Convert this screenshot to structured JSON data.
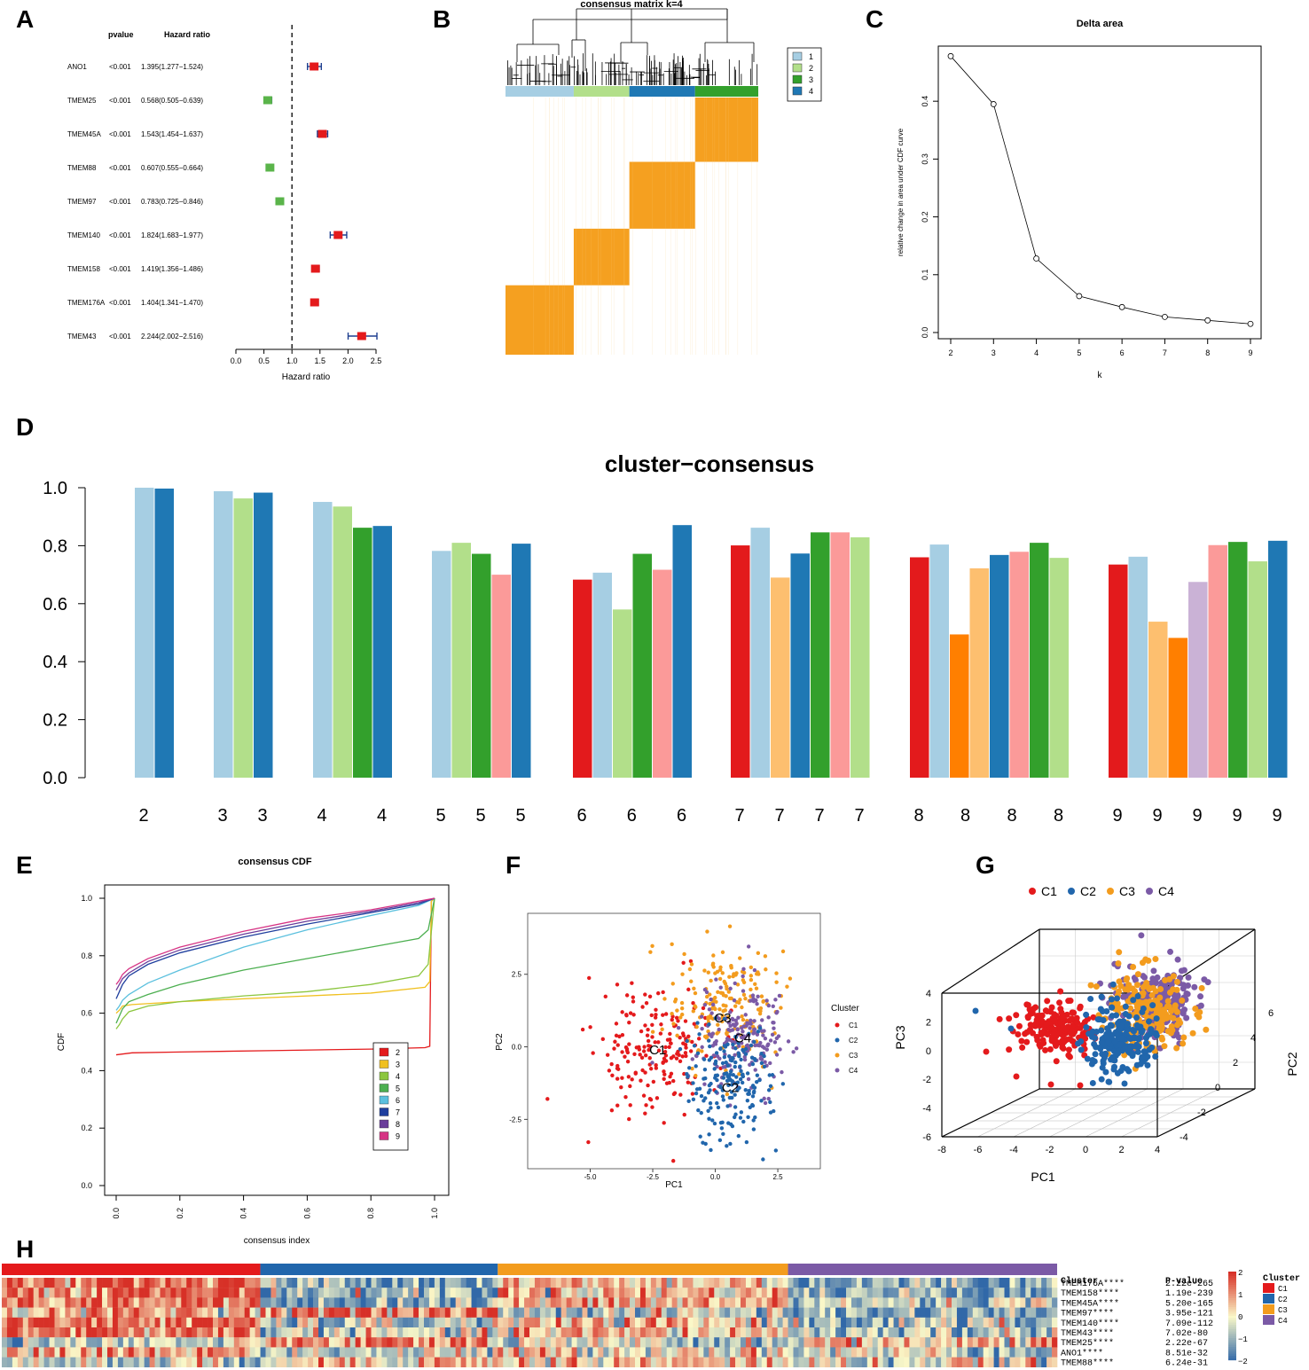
{
  "panel_labels": [
    "A",
    "B",
    "C",
    "D",
    "E",
    "F",
    "G",
    "H"
  ],
  "colors": {
    "red": "#e31a1c",
    "light_blue": "#a6cee3",
    "light_green": "#b2df8a",
    "dark_blue": "#1f78b4",
    "dark_green": "#33a02c",
    "pink": "#fb9a99",
    "light_orange": "#fdbf6f",
    "orange": "#ff7f00",
    "lavender": "#cab2d6",
    "forest_red": "#e41a1c",
    "forest_green": "#5ab44a",
    "consensus_orange": "#f5a020",
    "pca_red": "#e41a1c",
    "pca_blue": "#2166ac",
    "pca_orange": "#f39c1e",
    "pca_purple": "#7b5aa6"
  },
  "chart_data": [
    {
      "id": "forest",
      "type": "forest",
      "headers": {
        "pvalue": "pvalue",
        "hr": "Hazard ratio"
      },
      "xlabel": "Hazard ratio",
      "xlim": [
        0,
        2.5
      ],
      "xticks": [
        "0.0",
        "0.5",
        "1.0",
        "1.5",
        "2.0",
        "2.5"
      ],
      "ref_line": 1.0,
      "rows": [
        {
          "gene": "ANO1",
          "pvalue": "<0.001",
          "hr_text": "1.395(1.277−1.524)",
          "hr": 1.395,
          "lo": 1.277,
          "hi": 1.524
        },
        {
          "gene": "TMEM25",
          "pvalue": "<0.001",
          "hr_text": "0.568(0.505−0.639)",
          "hr": 0.568,
          "lo": 0.505,
          "hi": 0.639
        },
        {
          "gene": "TMEM45A",
          "pvalue": "<0.001",
          "hr_text": "1.543(1.454−1.637)",
          "hr": 1.543,
          "lo": 1.454,
          "hi": 1.637
        },
        {
          "gene": "TMEM88",
          "pvalue": "<0.001",
          "hr_text": "0.607(0.555−0.664)",
          "hr": 0.607,
          "lo": 0.555,
          "hi": 0.664
        },
        {
          "gene": "TMEM97",
          "pvalue": "<0.001",
          "hr_text": "0.783(0.725−0.846)",
          "hr": 0.783,
          "lo": 0.725,
          "hi": 0.846
        },
        {
          "gene": "TMEM140",
          "pvalue": "<0.001",
          "hr_text": "1.824(1.683−1.977)",
          "hr": 1.824,
          "lo": 1.683,
          "hi": 1.977
        },
        {
          "gene": "TMEM158",
          "pvalue": "<0.001",
          "hr_text": "1.419(1.356−1.486)",
          "hr": 1.419,
          "lo": 1.356,
          "hi": 1.486
        },
        {
          "gene": "TMEM176A",
          "pvalue": "<0.001",
          "hr_text": "1.404(1.341−1.470)",
          "hr": 1.404,
          "lo": 1.341,
          "hi": 1.47
        },
        {
          "gene": "TMEM43",
          "pvalue": "<0.001",
          "hr_text": "2.244(2.002−2.516)",
          "hr": 2.244,
          "lo": 2.002,
          "hi": 2.516
        }
      ]
    },
    {
      "id": "consensus-matrix",
      "type": "heatmap",
      "title": "consensus matrix k=4",
      "legend": [
        "1",
        "2",
        "3",
        "4"
      ],
      "legend_colors": [
        "#a6cee3",
        "#b2df8a",
        "#33a02c",
        "#1f78b4"
      ],
      "cluster_fractions": [
        0.27,
        0.22,
        0.25,
        0.26
      ]
    },
    {
      "id": "delta-area",
      "type": "line",
      "title": "Delta area",
      "xlabel": "k",
      "ylabel": "relative change in area under CDF curve",
      "x": [
        2,
        3,
        4,
        5,
        6,
        7,
        8,
        9
      ],
      "y": [
        0.478,
        0.395,
        0.128,
        0.063,
        0.044,
        0.027,
        0.021,
        0.015
      ],
      "xticks": [
        "2",
        "3",
        "4",
        "5",
        "6",
        "7",
        "8",
        "9"
      ],
      "yticks": [
        "0.0",
        "0.1",
        "0.2",
        "0.3",
        "0.4"
      ],
      "ylim": [
        0,
        0.48
      ]
    },
    {
      "id": "cluster-consensus",
      "type": "bar",
      "title": "cluster−consensus",
      "ylim": [
        0,
        1.0
      ],
      "yticks": [
        "0.0",
        "0.2",
        "0.4",
        "0.6",
        "0.8",
        "1.0"
      ],
      "groups": [
        {
          "k": "2",
          "bars": [
            {
              "v": 1.0,
              "c": "#a6cee3"
            },
            {
              "v": 0.997,
              "c": "#1f78b4"
            }
          ],
          "labels": [
            "2"
          ]
        },
        {
          "k": "3",
          "bars": [
            {
              "v": 0.988,
              "c": "#a6cee3"
            },
            {
              "v": 0.963,
              "c": "#b2df8a"
            },
            {
              "v": 0.983,
              "c": "#1f78b4"
            }
          ],
          "labels": [
            "3",
            "3"
          ]
        },
        {
          "k": "4",
          "bars": [
            {
              "v": 0.951,
              "c": "#a6cee3"
            },
            {
              "v": 0.935,
              "c": "#b2df8a"
            },
            {
              "v": 0.862,
              "c": "#33a02c"
            },
            {
              "v": 0.868,
              "c": "#1f78b4"
            }
          ],
          "labels": [
            "4",
            "4"
          ]
        },
        {
          "k": "5",
          "bars": [
            {
              "v": 0.782,
              "c": "#a6cee3"
            },
            {
              "v": 0.81,
              "c": "#b2df8a"
            },
            {
              "v": 0.772,
              "c": "#33a02c"
            },
            {
              "v": 0.7,
              "c": "#fb9a99"
            },
            {
              "v": 0.807,
              "c": "#1f78b4"
            }
          ],
          "labels": [
            "5",
            "5",
            "5"
          ]
        },
        {
          "k": "6",
          "bars": [
            {
              "v": 0.683,
              "c": "#e31a1c"
            },
            {
              "v": 0.707,
              "c": "#a6cee3"
            },
            {
              "v": 0.58,
              "c": "#b2df8a"
            },
            {
              "v": 0.772,
              "c": "#33a02c"
            },
            {
              "v": 0.717,
              "c": "#fb9a99"
            },
            {
              "v": 0.871,
              "c": "#1f78b4"
            }
          ],
          "labels": [
            "6",
            "6",
            "6"
          ]
        },
        {
          "k": "7",
          "bars": [
            {
              "v": 0.801,
              "c": "#e31a1c"
            },
            {
              "v": 0.862,
              "c": "#a6cee3"
            },
            {
              "v": 0.69,
              "c": "#fdbf6f"
            },
            {
              "v": 0.773,
              "c": "#1f78b4"
            },
            {
              "v": 0.846,
              "c": "#33a02c"
            },
            {
              "v": 0.846,
              "c": "#fb9a99"
            },
            {
              "v": 0.829,
              "c": "#b2df8a"
            }
          ],
          "labels": [
            "7",
            "7",
            "7",
            "7"
          ]
        },
        {
          "k": "8",
          "bars": [
            {
              "v": 0.76,
              "c": "#e31a1c"
            },
            {
              "v": 0.804,
              "c": "#a6cee3"
            },
            {
              "v": 0.494,
              "c": "#ff7f00"
            },
            {
              "v": 0.722,
              "c": "#fdbf6f"
            },
            {
              "v": 0.768,
              "c": "#1f78b4"
            },
            {
              "v": 0.779,
              "c": "#fb9a99"
            },
            {
              "v": 0.81,
              "c": "#33a02c"
            },
            {
              "v": 0.758,
              "c": "#b2df8a"
            }
          ],
          "labels": [
            "8",
            "8",
            "8",
            "8"
          ]
        },
        {
          "k": "9",
          "bars": [
            {
              "v": 0.735,
              "c": "#e31a1c"
            },
            {
              "v": 0.762,
              "c": "#a6cee3"
            },
            {
              "v": 0.538,
              "c": "#fdbf6f"
            },
            {
              "v": 0.482,
              "c": "#ff7f00"
            },
            {
              "v": 0.675,
              "c": "#cab2d6"
            },
            {
              "v": 0.802,
              "c": "#fb9a99"
            },
            {
              "v": 0.813,
              "c": "#33a02c"
            },
            {
              "v": 0.746,
              "c": "#b2df8a"
            },
            {
              "v": 0.817,
              "c": "#1f78b4"
            }
          ],
          "labels": [
            "9",
            "9",
            "9",
            "9",
            "9"
          ]
        }
      ]
    },
    {
      "id": "consensus-cdf",
      "type": "line",
      "title": "consensus CDF",
      "xlabel": "consensus index",
      "ylabel": "CDF",
      "xticks": [
        "0.0",
        "0.2",
        "0.4",
        "0.6",
        "0.8",
        "1.0"
      ],
      "yticks": [
        "0.0",
        "0.2",
        "0.4",
        "0.6",
        "0.8",
        "1.0"
      ],
      "xlim": [
        0,
        1
      ],
      "ylim": [
        0,
        1
      ],
      "legend": [
        "2",
        "3",
        "4",
        "5",
        "6",
        "7",
        "8",
        "9"
      ],
      "series": [
        {
          "name": "2",
          "color": "#e41a1c",
          "x": [
            0,
            0.05,
            0.2,
            0.5,
            0.8,
            0.97,
            0.985,
            0.99,
            1.0
          ],
          "y": [
            0.455,
            0.462,
            0.465,
            0.47,
            0.475,
            0.48,
            0.485,
            0.99,
            1.0
          ]
        },
        {
          "name": "3",
          "color": "#f0c020",
          "x": [
            0,
            0.01,
            0.02,
            0.05,
            0.2,
            0.5,
            0.8,
            0.97,
            0.985,
            0.99,
            1.0
          ],
          "y": [
            0.6,
            0.61,
            0.625,
            0.63,
            0.64,
            0.655,
            0.67,
            0.69,
            0.71,
            0.99,
            1.0
          ]
        },
        {
          "name": "4",
          "color": "#8cc63f",
          "x": [
            0,
            0.01,
            0.02,
            0.04,
            0.1,
            0.2,
            0.4,
            0.6,
            0.8,
            0.95,
            0.98,
            1.0
          ],
          "y": [
            0.545,
            0.56,
            0.58,
            0.605,
            0.625,
            0.64,
            0.66,
            0.675,
            0.7,
            0.73,
            0.77,
            1.0
          ]
        },
        {
          "name": "5",
          "color": "#4caf50",
          "x": [
            0,
            0.01,
            0.02,
            0.04,
            0.1,
            0.2,
            0.4,
            0.6,
            0.8,
            0.95,
            0.98,
            1.0
          ],
          "y": [
            0.565,
            0.59,
            0.615,
            0.64,
            0.665,
            0.7,
            0.75,
            0.79,
            0.83,
            0.86,
            0.89,
            1.0
          ]
        },
        {
          "name": "6",
          "color": "#5bc0de",
          "x": [
            0,
            0.01,
            0.02,
            0.04,
            0.1,
            0.2,
            0.4,
            0.6,
            0.8,
            0.95,
            1.0
          ],
          "y": [
            0.61,
            0.625,
            0.645,
            0.665,
            0.705,
            0.75,
            0.83,
            0.89,
            0.94,
            0.975,
            1.0
          ]
        },
        {
          "name": "7",
          "color": "#1f3f9e",
          "x": [
            0,
            0.01,
            0.02,
            0.04,
            0.1,
            0.2,
            0.4,
            0.6,
            0.8,
            0.95,
            1.0
          ],
          "y": [
            0.65,
            0.675,
            0.7,
            0.73,
            0.77,
            0.81,
            0.865,
            0.91,
            0.95,
            0.98,
            1.0
          ]
        },
        {
          "name": "8",
          "color": "#6a3d9a",
          "x": [
            0,
            0.01,
            0.02,
            0.04,
            0.1,
            0.2,
            0.4,
            0.6,
            0.8,
            0.95,
            1.0
          ],
          "y": [
            0.68,
            0.7,
            0.72,
            0.74,
            0.78,
            0.82,
            0.875,
            0.92,
            0.955,
            0.985,
            1.0
          ]
        },
        {
          "name": "9",
          "color": "#d63384",
          "x": [
            0,
            0.01,
            0.02,
            0.04,
            0.1,
            0.2,
            0.4,
            0.6,
            0.8,
            0.95,
            1.0
          ],
          "y": [
            0.7,
            0.715,
            0.735,
            0.755,
            0.79,
            0.83,
            0.885,
            0.93,
            0.96,
            0.99,
            1.0
          ]
        }
      ]
    },
    {
      "id": "pca-2d",
      "type": "scatter",
      "xlabel": "PC1",
      "ylabel": "PC2",
      "xticks": [
        "-5.0",
        "-2.5",
        "0.0",
        "2.5"
      ],
      "yticks": [
        "-2.5",
        "0.0",
        "2.5"
      ],
      "xlim": [
        -7.5,
        4.2
      ],
      "ylim": [
        -4.2,
        4.6
      ],
      "legend_title": "Cluster",
      "legend": [
        "C1",
        "C2",
        "C3",
        "C4"
      ],
      "cluster_labels": [
        "C1",
        "C2",
        "C3",
        "C4"
      ],
      "centers": [
        {
          "name": "C1",
          "x": -2.3,
          "y": -0.1
        },
        {
          "name": "C2",
          "x": 0.6,
          "y": -1.4
        },
        {
          "name": "C3",
          "x": 0.3,
          "y": 1.0
        },
        {
          "name": "C4",
          "x": 1.1,
          "y": 0.3
        }
      ]
    },
    {
      "id": "pca-3d",
      "type": "scatter",
      "legend": [
        "C1",
        "C2",
        "C3",
        "C4"
      ],
      "xlabel": "PC1",
      "ylabel": "PC2",
      "zlabel": "PC3",
      "xticks": [
        "-8",
        "-6",
        "-4",
        "-2",
        "0",
        "2",
        "4"
      ],
      "yticks": [
        "-4",
        "-2",
        "0",
        "2",
        "4",
        "6"
      ],
      "zticks": [
        "-6",
        "-4",
        "-2",
        "0",
        "2",
        "4"
      ]
    },
    {
      "id": "expression-heatmap",
      "type": "heatmap",
      "annotation_label": "Cluster",
      "pvalue_header": "P-value",
      "cluster_legend_title": "Cluster",
      "cluster_legend": [
        "C1",
        "C2",
        "C3",
        "C4"
      ],
      "cluster_fractions": [
        0.245,
        0.225,
        0.275,
        0.255
      ],
      "scale_ticks": [
        "2",
        "1",
        "0",
        "−1",
        "−2"
      ],
      "genes": [
        {
          "label": "TMEM176A****",
          "p": "2.22e-265",
          "pattern": [
            1,
            -0.6,
            0.3,
            -0.7
          ]
        },
        {
          "label": "TMEM158****",
          "p": "1.19e-239",
          "pattern": [
            1,
            -0.5,
            0.4,
            -0.6
          ]
        },
        {
          "label": "TMEM45A****",
          "p": "5.20e-165",
          "pattern": [
            0.8,
            -0.7,
            0.4,
            -0.3
          ]
        },
        {
          "label": "TMEM97****",
          "p": "3.95e-121",
          "pattern": [
            0.5,
            0.8,
            -0.3,
            -0.7
          ]
        },
        {
          "label": "TMEM140****",
          "p": "7.09e-112",
          "pattern": [
            0.9,
            -0.4,
            0.2,
            -0.5
          ]
        },
        {
          "label": "TMEM43****",
          "p": "7.02e-80",
          "pattern": [
            0.8,
            -0.3,
            0.3,
            -0.4
          ]
        },
        {
          "label": "TMEM25****",
          "p": "2.22e-67",
          "pattern": [
            -0.4,
            0.7,
            -0.4,
            0.3
          ]
        },
        {
          "label": "ANO1****",
          "p": "8.51e-32",
          "pattern": [
            0.6,
            -0.3,
            0.2,
            -0.2
          ]
        },
        {
          "label": "TMEM88****",
          "p": "6.24e-31",
          "pattern": [
            -0.3,
            0.4,
            0.3,
            -0.1
          ]
        }
      ]
    }
  ]
}
